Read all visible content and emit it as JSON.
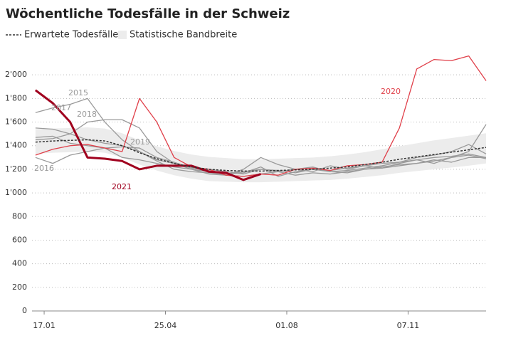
{
  "chart_data": {
    "type": "line",
    "title": "Wöchentliche Todesfälle in der Schweiz",
    "x": [
      2,
      4,
      6,
      8,
      10,
      12,
      14,
      16,
      18,
      20,
      22,
      24,
      26,
      28,
      30,
      32,
      34,
      36,
      38,
      40,
      42,
      44,
      46,
      48,
      50,
      52,
      54
    ],
    "xlim": [
      1.6,
      54
    ],
    "xticks": [
      {
        "value": 3,
        "label": "17.01"
      },
      {
        "value": 17,
        "label": "25.04"
      },
      {
        "value": 31,
        "label": "01.08"
      },
      {
        "value": 45,
        "label": "07.11"
      }
    ],
    "ylim": [
      0,
      2200
    ],
    "yticks": [
      0,
      200,
      400,
      600,
      800,
      {
        "value": 1000,
        "label": "1'000"
      },
      {
        "value": 1200,
        "label": "1'200"
      },
      {
        "value": 1400,
        "label": "1'400"
      },
      {
        "value": 1600,
        "label": "1'600"
      },
      {
        "value": 1800,
        "label": "1'800"
      },
      {
        "value": 2000,
        "label": "2'000"
      }
    ],
    "grid": true,
    "band": {
      "name": "Statistische Bandbreite",
      "color": "#ececec",
      "lower": [
        1330,
        1340,
        1345,
        1350,
        1340,
        1300,
        1240,
        1190,
        1150,
        1120,
        1100,
        1095,
        1090,
        1090,
        1095,
        1100,
        1105,
        1110,
        1120,
        1135,
        1150,
        1170,
        1185,
        1200,
        1215,
        1230,
        1250
      ],
      "upper": [
        1540,
        1545,
        1550,
        1555,
        1545,
        1505,
        1445,
        1395,
        1355,
        1325,
        1305,
        1295,
        1285,
        1285,
        1290,
        1295,
        1300,
        1310,
        1325,
        1345,
        1370,
        1395,
        1420,
        1445,
        1465,
        1485,
        1505
      ]
    },
    "series": [
      {
        "name": "Erwartete Todesfälle",
        "color": "#333333",
        "dashed": true,
        "values": [
          1430,
          1440,
          1445,
          1450,
          1440,
          1400,
          1340,
          1290,
          1250,
          1220,
          1200,
          1190,
          1185,
          1185,
          1190,
          1195,
          1200,
          1210,
          1220,
          1240,
          1260,
          1285,
          1305,
          1325,
          1345,
          1365,
          1385
        ]
      },
      {
        "name": "2015",
        "color": "#9a9a9a",
        "values": [
          1680,
          1720,
          1750,
          1800,
          1600,
          1450,
          1350,
          1270,
          1200,
          1180,
          1170,
          1160,
          1180,
          1200,
          1190,
          1170,
          1200,
          1190,
          1210,
          1230,
          1250,
          1260,
          1280,
          1300,
          1310,
          1330,
          1300
        ]
      },
      {
        "name": "2016",
        "color": "#9a9a9a",
        "values": [
          1300,
          1250,
          1320,
          1350,
          1380,
          1300,
          1280,
          1250,
          1220,
          1200,
          1180,
          1150,
          1140,
          1160,
          1180,
          1150,
          1170,
          1160,
          1180,
          1200,
          1210,
          1230,
          1250,
          1280,
          1260,
          1300,
          1300
        ]
      },
      {
        "name": "2017",
        "color": "#9a9a9a",
        "values": [
          1550,
          1540,
          1500,
          1450,
          1420,
          1400,
          1350,
          1280,
          1250,
          1220,
          1200,
          1180,
          1160,
          1200,
          1180,
          1200,
          1220,
          1180,
          1170,
          1200,
          1220,
          1240,
          1250,
          1270,
          1300,
          1320,
          1290
        ]
      },
      {
        "name": "2018",
        "color": "#9a9a9a",
        "values": [
          1450,
          1460,
          1500,
          1600,
          1620,
          1620,
          1550,
          1350,
          1250,
          1200,
          1160,
          1150,
          1200,
          1300,
          1240,
          1200,
          1180,
          1230,
          1200,
          1230,
          1210,
          1250,
          1280,
          1250,
          1300,
          1350,
          1580
        ]
      },
      {
        "name": "2019",
        "color": "#9a9a9a",
        "values": [
          1470,
          1480,
          1420,
          1400,
          1380,
          1390,
          1380,
          1300,
          1260,
          1210,
          1190,
          1160,
          1170,
          1220,
          1140,
          1180,
          1200,
          1180,
          1190,
          1210,
          1230,
          1260,
          1300,
          1320,
          1350,
          1410,
          1330
        ]
      },
      {
        "name": "2020",
        "color": "#e0404a",
        "values": [
          1320,
          1370,
          1400,
          1410,
          1380,
          1350,
          1800,
          1600,
          1300,
          1220,
          1200,
          1150,
          1140,
          1160,
          1150,
          1200,
          1210,
          1190,
          1230,
          1240,
          1260,
          1550,
          2050,
          2130,
          2120,
          2160,
          1950
        ]
      },
      {
        "name": "2021",
        "color": "#a0001e",
        "width": 3,
        "values": [
          1870,
          1760,
          1600,
          1300,
          1290,
          1270,
          1200,
          1230,
          1230,
          1230,
          1180,
          1170,
          1110,
          1160,
          null,
          null,
          null,
          null,
          null,
          null,
          null,
          null,
          null,
          null,
          null,
          null,
          null
        ]
      }
    ]
  }
}
